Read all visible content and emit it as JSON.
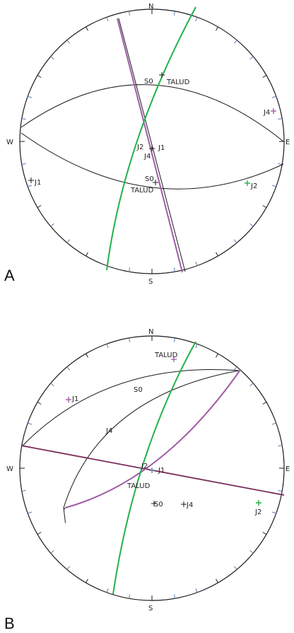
{
  "colors": {
    "great_circle_black": "#1a1a1a",
    "green": "#22b14c",
    "purple": "#a05ca6",
    "tick_blue": "#5b7fb0"
  },
  "panels": [
    {
      "label": "A",
      "compass": {
        "north": "N",
        "south": "S",
        "east": "E",
        "west": "W"
      },
      "plane_labels": [
        "S0",
        "TALUD",
        "J4",
        "J2",
        "J1",
        "J4",
        "S0",
        "TALUD"
      ],
      "pole_labels": [
        "J1",
        "J2"
      ]
    },
    {
      "label": "B",
      "compass": {
        "north": "N",
        "south": "S",
        "east": "E",
        "west": "W"
      },
      "plane_labels": [
        "TALUD",
        "S0",
        "J4",
        "J2",
        "J1",
        "TALUD",
        "S0",
        "J4"
      ],
      "pole_labels": [
        "J1",
        "J2"
      ]
    }
  ]
}
